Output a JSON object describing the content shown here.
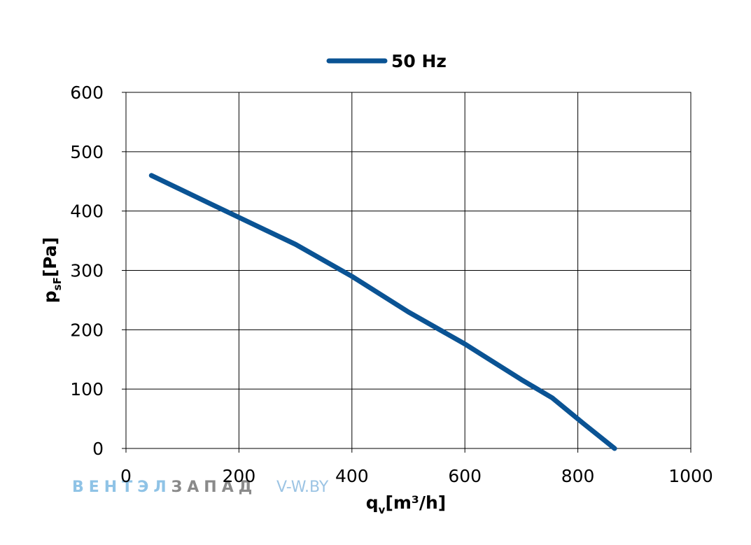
{
  "chart_data": {
    "type": "line",
    "title": "",
    "xlabel": "q",
    "xlabel_sub": "v",
    "xlabel_unit": "[m³/h]",
    "ylabel": "p",
    "ylabel_sub": "sF",
    "ylabel_unit": "[Pa]",
    "xlim": [
      0,
      1000
    ],
    "ylim": [
      0,
      600
    ],
    "x_ticks": [
      0,
      200,
      400,
      600,
      800,
      1000
    ],
    "y_ticks": [
      0,
      100,
      200,
      300,
      400,
      500,
      600
    ],
    "grid": true,
    "legend_position": "top-center",
    "series": [
      {
        "name": "50 Hz",
        "color": "#0a5394",
        "points": [
          {
            "x": 45,
            "y": 460
          },
          {
            "x": 150,
            "y": 412
          },
          {
            "x": 300,
            "y": 344
          },
          {
            "x": 400,
            "y": 290
          },
          {
            "x": 500,
            "y": 230
          },
          {
            "x": 600,
            "y": 176
          },
          {
            "x": 700,
            "y": 116
          },
          {
            "x": 755,
            "y": 85
          },
          {
            "x": 810,
            "y": 42
          },
          {
            "x": 865,
            "y": 0
          }
        ]
      }
    ]
  },
  "watermark": {
    "brand_part1": "ВЕНТЭЛ",
    "brand_part2": "ЗАПАД",
    "site": "V-W.BY",
    "brand_color1": "#8fc3e6",
    "brand_color2": "#8a8a8a",
    "site_color": "#9cc4e4"
  }
}
